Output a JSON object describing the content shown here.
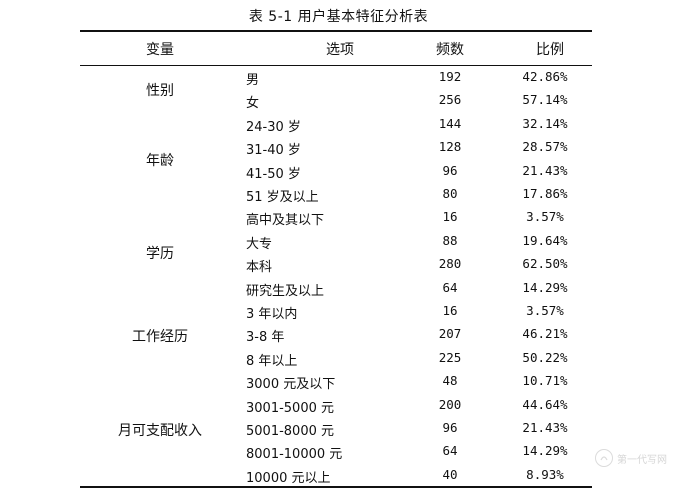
{
  "caption": "表 5-1 用户基本特征分析表",
  "headers": {
    "variable": "变量",
    "option": "选项",
    "frequency": "频数",
    "ratio": "比例"
  },
  "groups": [
    {
      "label": "性别"
    },
    {
      "label": "年龄"
    },
    {
      "label": "学历"
    },
    {
      "label": "工作经历"
    },
    {
      "label": "月可支配收入"
    }
  ],
  "rows": [
    {
      "option": "男",
      "frequency": "192",
      "ratio": "42.86%"
    },
    {
      "option": "女",
      "frequency": "256",
      "ratio": "57.14%"
    },
    {
      "option": "24-30 岁",
      "frequency": "144",
      "ratio": "32.14%"
    },
    {
      "option": "31-40 岁",
      "frequency": "128",
      "ratio": "28.57%"
    },
    {
      "option": "41-50 岁",
      "frequency": "96",
      "ratio": "21.43%"
    },
    {
      "option": "51 岁及以上",
      "frequency": "80",
      "ratio": "17.86%"
    },
    {
      "option": "高中及其以下",
      "frequency": "16",
      "ratio": "3.57%"
    },
    {
      "option": "大专",
      "frequency": "88",
      "ratio": "19.64%"
    },
    {
      "option": "本科",
      "frequency": "280",
      "ratio": "62.50%"
    },
    {
      "option": "研究生及以上",
      "frequency": "64",
      "ratio": "14.29%"
    },
    {
      "option": "3 年以内",
      "frequency": "16",
      "ratio": "3.57%"
    },
    {
      "option": "3-8 年",
      "frequency": "207",
      "ratio": "46.21%"
    },
    {
      "option": "8 年以上",
      "frequency": "225",
      "ratio": "50.22%"
    },
    {
      "option": "3000 元及以下",
      "frequency": "48",
      "ratio": "10.71%"
    },
    {
      "option": "3001-5000 元",
      "frequency": "200",
      "ratio": "44.64%"
    },
    {
      "option": "5001-8000 元",
      "frequency": "96",
      "ratio": "21.43%"
    },
    {
      "option": "8001-10000 元",
      "frequency": "64",
      "ratio": "14.29%"
    },
    {
      "option": "10000 元以上",
      "frequency": "40",
      "ratio": "8.93%"
    }
  ],
  "watermark": {
    "text": "第一代写网",
    "icon": "logo-circle-icon"
  }
}
